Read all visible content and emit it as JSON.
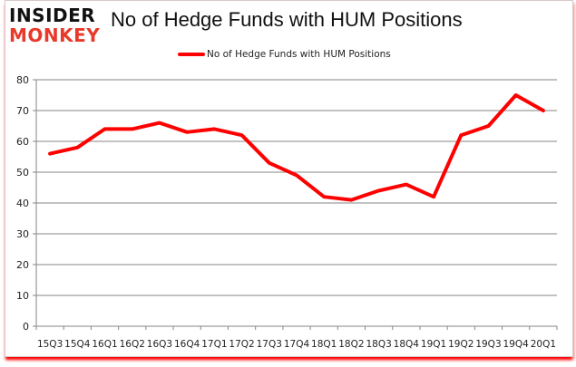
{
  "logo": {
    "line1": "INSIDER",
    "line2": "MONKEY"
  },
  "title": "No of Hedge Funds with HUM Positions",
  "legend": {
    "label": "No of Hedge Funds with HUM Positions",
    "color": "#ff0000"
  },
  "colors": {
    "series": "#ff0000",
    "grid": "#868686",
    "frame_shadow": "#ff0000",
    "logo_top": "#111111",
    "logo_bottom": "#e8392b"
  },
  "chart_data": {
    "type": "line",
    "title": "No of Hedge Funds with HUM Positions",
    "xlabel": "",
    "ylabel": "",
    "categories": [
      "15Q3",
      "15Q4",
      "16Q1",
      "16Q2",
      "16Q3",
      "16Q4",
      "17Q1",
      "17Q2",
      "17Q3",
      "17Q4",
      "18Q1",
      "18Q2",
      "18Q3",
      "18Q4",
      "19Q1",
      "19Q2",
      "19Q3",
      "19Q4",
      "20Q1"
    ],
    "series": [
      {
        "name": "No of Hedge Funds with HUM Positions",
        "values": [
          56,
          58,
          64,
          64,
          66,
          63,
          64,
          62,
          53,
          49,
          42,
          41,
          44,
          46,
          42,
          62,
          65,
          75,
          70
        ]
      }
    ],
    "ylim": [
      0,
      80
    ],
    "yticks": [
      0,
      10,
      20,
      30,
      40,
      50,
      60,
      70,
      80
    ],
    "grid": true,
    "legend_position": "top"
  }
}
